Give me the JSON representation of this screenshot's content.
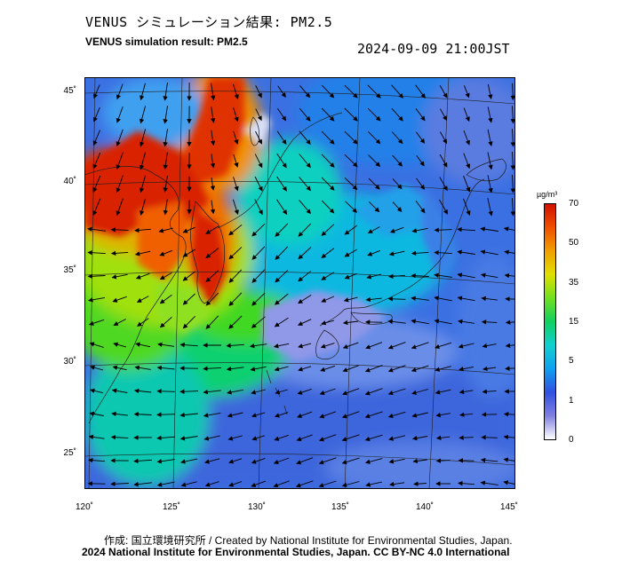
{
  "header": {
    "title_jp": "VENUS シミュレーション結果: PM2.5",
    "title_en": "VENUS simulation result: PM2.5",
    "timestamp": "2024-09-09 21:00JST"
  },
  "map": {
    "lat_labels": [
      "45˚",
      "40˚",
      "35˚",
      "30˚",
      "25˚"
    ],
    "lon_labels": [
      "120˚",
      "125˚",
      "130˚",
      "135˚",
      "140˚",
      "145˚"
    ],
    "lat_values": [
      45,
      40,
      35,
      30,
      25
    ],
    "lon_values": [
      120,
      125,
      130,
      135,
      140,
      145
    ],
    "wind_arrow_icon": "wind-arrow-icon"
  },
  "colorbar": {
    "unit": "µg/m³",
    "ticks": [
      "70",
      "50",
      "35",
      "15",
      "5",
      "1",
      "0"
    ],
    "colors": [
      "#d01000",
      "#f05000",
      "#f0a000",
      "#e0e000",
      "#70e020",
      "#10d060",
      "#10d0d0",
      "#10a0f0",
      "#3050e0",
      "#8080e0",
      "#ffffff"
    ]
  },
  "footer": {
    "credit_line1": "作成: 国立環境研究所 / Created by National Institute for Environmental Studies, Japan.",
    "credit_line2": "2024 National Institute for Environmental Studies, Japan. CC BY-NC 4.0 International"
  }
}
